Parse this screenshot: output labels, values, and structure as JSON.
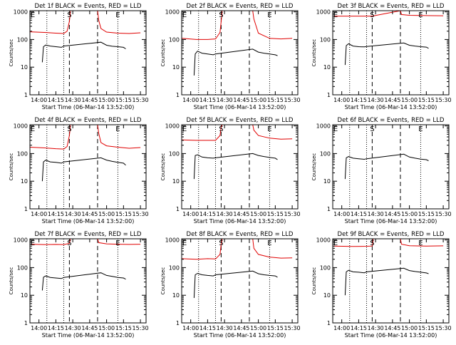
{
  "colors": {
    "events": "#000000",
    "lld": "#e00000",
    "axes": "#000000",
    "background": "#ffffff"
  },
  "common": {
    "ylabel": "Counts/sec",
    "xlabel": "Start Time (06-Mar-14 13:52:00)",
    "x_ticks": [
      "14:00",
      "14:15",
      "14:30",
      "14:45",
      "15:00",
      "15:15",
      "15:30"
    ],
    "y_ticks": [
      "1",
      "10",
      "100",
      "1000"
    ],
    "dotted_lines": [
      "14:07",
      "14:22",
      "15:10"
    ],
    "dashed_lines": [
      "14:27",
      "14:52"
    ],
    "marker_labels": [
      {
        "text": "E",
        "time": "13:52"
      },
      {
        "text": "S",
        "time": "14:27"
      },
      {
        "text": "E",
        "time": "15:10"
      }
    ]
  },
  "chart_data": [
    {
      "type": "line",
      "title": "Det 1f BLACK = Events, RED = LLD",
      "xlim": [
        "13:52",
        "15:35"
      ],
      "ylim": [
        1,
        1100
      ],
      "yscale": "log",
      "series": [
        {
          "color": "#e00000",
          "points": [
            [
              "13:52",
              190
            ],
            [
              "14:05",
              180
            ],
            [
              "14:15",
              170
            ],
            [
              "14:22",
              165
            ],
            [
              "14:25",
              200
            ],
            [
              "14:27",
              450
            ],
            [
              "14:28",
              1100
            ],
            [
              "14:52",
              1100
            ],
            [
              "14:53",
              500
            ],
            [
              "14:55",
              250
            ],
            [
              "15:00",
              185
            ],
            [
              "15:10",
              170
            ],
            [
              "15:20",
              165
            ],
            [
              "15:30",
              175
            ]
          ]
        },
        {
          "color": "#000000",
          "points": [
            [
              "14:03",
              15
            ],
            [
              "14:04",
              55
            ],
            [
              "14:06",
              63
            ],
            [
              "14:10",
              58
            ],
            [
              "14:15",
              55
            ],
            [
              "14:20",
              52
            ],
            [
              "14:22",
              58
            ],
            [
              "14:55",
              80
            ],
            [
              "15:00",
              62
            ],
            [
              "15:05",
              57
            ],
            [
              "15:10",
              55
            ],
            [
              "15:15",
              52
            ],
            [
              "15:17",
              46
            ]
          ]
        }
      ]
    },
    {
      "type": "line",
      "title": "Det 2f BLACK = Events, RED = LLD",
      "xlim": [
        "13:52",
        "15:35"
      ],
      "ylim": [
        1,
        1100
      ],
      "yscale": "log",
      "series": [
        {
          "color": "#e00000",
          "points": [
            [
              "13:52",
              110
            ],
            [
              "14:05",
              100
            ],
            [
              "14:15",
              100
            ],
            [
              "14:22",
              105
            ],
            [
              "14:26",
              180
            ],
            [
              "14:27",
              450
            ],
            [
              "14:28",
              1100
            ],
            [
              "14:55",
              1100
            ],
            [
              "14:56",
              550
            ],
            [
              "15:00",
              170
            ],
            [
              "15:10",
              110
            ],
            [
              "15:20",
              105
            ],
            [
              "15:30",
              110
            ]
          ]
        },
        {
          "color": "#000000",
          "points": [
            [
              "14:03",
              5
            ],
            [
              "14:04",
              30
            ],
            [
              "14:06",
              38
            ],
            [
              "14:10",
              32
            ],
            [
              "14:15",
              30
            ],
            [
              "14:20",
              28
            ],
            [
              "14:22",
              30
            ],
            [
              "14:55",
              45
            ],
            [
              "15:00",
              35
            ],
            [
              "15:05",
              32
            ],
            [
              "15:10",
              30
            ],
            [
              "15:15",
              28
            ],
            [
              "15:17",
              26
            ]
          ]
        }
      ]
    },
    {
      "type": "line",
      "title": "Det 3f BLACK = Events, RED = LLD",
      "xlim": [
        "13:52",
        "15:35"
      ],
      "ylim": [
        1,
        1100
      ],
      "yscale": "log",
      "series": [
        {
          "color": "#e00000",
          "points": [
            [
              "13:52",
              700
            ],
            [
              "14:10",
              700
            ],
            [
              "14:22",
              700
            ],
            [
              "14:27",
              700
            ],
            [
              "14:52",
              1100
            ],
            [
              "14:53",
              800
            ],
            [
              "15:00",
              750
            ],
            [
              "15:15",
              730
            ],
            [
              "15:30",
              720
            ]
          ]
        },
        {
          "color": "#000000",
          "points": [
            [
              "14:03",
              12
            ],
            [
              "14:04",
              60
            ],
            [
              "14:06",
              70
            ],
            [
              "14:10",
              58
            ],
            [
              "14:15",
              55
            ],
            [
              "14:20",
              54
            ],
            [
              "14:22",
              56
            ],
            [
              "14:55",
              75
            ],
            [
              "15:00",
              62
            ],
            [
              "15:05",
              58
            ],
            [
              "15:10",
              55
            ],
            [
              "15:15",
              53
            ],
            [
              "15:17",
              48
            ]
          ]
        }
      ]
    },
    {
      "type": "line",
      "title": "Det 4f BLACK = Events, RED = LLD",
      "xlim": [
        "13:52",
        "15:35"
      ],
      "ylim": [
        1,
        1100
      ],
      "yscale": "log",
      "series": [
        {
          "color": "#e00000",
          "points": [
            [
              "13:52",
              170
            ],
            [
              "14:05",
              160
            ],
            [
              "14:15",
              150
            ],
            [
              "14:22",
              145
            ],
            [
              "14:25",
              180
            ],
            [
              "14:27",
              450
            ],
            [
              "14:28",
              1100
            ],
            [
              "14:52",
              1100
            ],
            [
              "14:53",
              550
            ],
            [
              "14:55",
              250
            ],
            [
              "15:00",
              190
            ],
            [
              "15:10",
              170
            ],
            [
              "15:20",
              155
            ],
            [
              "15:30",
              165
            ]
          ]
        },
        {
          "color": "#000000",
          "points": [
            [
              "14:03",
              10
            ],
            [
              "14:04",
              50
            ],
            [
              "14:06",
              58
            ],
            [
              "14:10",
              50
            ],
            [
              "14:15",
              48
            ],
            [
              "14:20",
              45
            ],
            [
              "14:22",
              50
            ],
            [
              "14:55",
              70
            ],
            [
              "15:00",
              58
            ],
            [
              "15:05",
              52
            ],
            [
              "15:10",
              48
            ],
            [
              "15:15",
              45
            ],
            [
              "15:17",
              38
            ]
          ]
        }
      ]
    },
    {
      "type": "line",
      "title": "Det 5f BLACK = Events, RED = LLD",
      "xlim": [
        "13:52",
        "15:35"
      ],
      "ylim": [
        1,
        1100
      ],
      "yscale": "log",
      "series": [
        {
          "color": "#e00000",
          "points": [
            [
              "13:52",
              310
            ],
            [
              "14:05",
              300
            ],
            [
              "14:15",
              300
            ],
            [
              "14:22",
              300
            ],
            [
              "14:26",
              450
            ],
            [
              "14:27",
              900
            ],
            [
              "14:28",
              1100
            ],
            [
              "14:55",
              1100
            ],
            [
              "14:56",
              700
            ],
            [
              "15:00",
              450
            ],
            [
              "15:10",
              360
            ],
            [
              "15:20",
              330
            ],
            [
              "15:30",
              340
            ]
          ]
        },
        {
          "color": "#000000",
          "points": [
            [
              "14:03",
              12
            ],
            [
              "14:04",
              85
            ],
            [
              "14:06",
              90
            ],
            [
              "14:10",
              75
            ],
            [
              "14:15",
              70
            ],
            [
              "14:20",
              68
            ],
            [
              "14:22",
              70
            ],
            [
              "14:55",
              100
            ],
            [
              "15:00",
              85
            ],
            [
              "15:05",
              78
            ],
            [
              "15:10",
              72
            ],
            [
              "15:15",
              68
            ],
            [
              "15:17",
              60
            ]
          ]
        }
      ]
    },
    {
      "type": "line",
      "title": "Det 6f BLACK = Events, RED = LLD",
      "xlim": [
        "13:52",
        "15:35"
      ],
      "ylim": [
        1,
        1100
      ],
      "yscale": "log",
      "series": [
        {
          "color": "#e00000",
          "points": [
            [
              "13:52",
              1100
            ],
            [
              "14:27",
              1100
            ],
            [
              "14:52",
              1100
            ],
            [
              "15:30",
              1100
            ]
          ]
        },
        {
          "color": "#000000",
          "points": [
            [
              "14:03",
              12
            ],
            [
              "14:04",
              70
            ],
            [
              "14:06",
              78
            ],
            [
              "14:10",
              68
            ],
            [
              "14:15",
              65
            ],
            [
              "14:20",
              62
            ],
            [
              "14:22",
              65
            ],
            [
              "14:55",
              95
            ],
            [
              "15:00",
              75
            ],
            [
              "15:05",
              68
            ],
            [
              "15:10",
              63
            ],
            [
              "15:15",
              60
            ],
            [
              "15:17",
              55
            ]
          ]
        }
      ]
    },
    {
      "type": "line",
      "title": "Det 7f BLACK = Events, RED = LLD",
      "xlim": [
        "13:52",
        "15:35"
      ],
      "ylim": [
        1,
        1100
      ],
      "yscale": "log",
      "series": [
        {
          "color": "#e00000",
          "points": [
            [
              "13:52",
              700
            ],
            [
              "14:05",
              680
            ],
            [
              "14:15",
              690
            ],
            [
              "14:22",
              680
            ],
            [
              "14:27",
              750
            ],
            [
              "14:28",
              1100
            ],
            [
              "14:52",
              1100
            ],
            [
              "14:53",
              800
            ],
            [
              "15:00",
              720
            ],
            [
              "15:10",
              700
            ],
            [
              "15:20",
              690
            ],
            [
              "15:30",
              700
            ]
          ]
        },
        {
          "color": "#000000",
          "points": [
            [
              "14:03",
              15
            ],
            [
              "14:04",
              45
            ],
            [
              "14:06",
              50
            ],
            [
              "14:10",
              44
            ],
            [
              "14:15",
              42
            ],
            [
              "14:20",
              40
            ],
            [
              "14:22",
              44
            ],
            [
              "14:55",
              65
            ],
            [
              "15:00",
              52
            ],
            [
              "15:05",
              48
            ],
            [
              "15:10",
              44
            ],
            [
              "15:15",
              42
            ],
            [
              "15:17",
              38
            ]
          ]
        }
      ]
    },
    {
      "type": "line",
      "title": "Det 8f BLACK = Events, RED = LLD",
      "xlim": [
        "13:52",
        "15:35"
      ],
      "ylim": [
        1,
        1100
      ],
      "yscale": "log",
      "series": [
        {
          "color": "#e00000",
          "points": [
            [
              "13:52",
              210
            ],
            [
              "14:05",
              200
            ],
            [
              "14:15",
              210
            ],
            [
              "14:22",
              205
            ],
            [
              "14:26",
              300
            ],
            [
              "14:27",
              700
            ],
            [
              "14:28",
              1100
            ],
            [
              "14:55",
              1100
            ],
            [
              "14:56",
              500
            ],
            [
              "15:00",
              300
            ],
            [
              "15:10",
              240
            ],
            [
              "15:20",
              220
            ],
            [
              "15:30",
              225
            ]
          ]
        },
        {
          "color": "#000000",
          "points": [
            [
              "14:03",
              8
            ],
            [
              "14:04",
              55
            ],
            [
              "14:06",
              62
            ],
            [
              "14:10",
              55
            ],
            [
              "14:15",
              52
            ],
            [
              "14:20",
              50
            ],
            [
              "14:22",
              55
            ],
            [
              "14:55",
              75
            ],
            [
              "15:00",
              60
            ],
            [
              "15:05",
              55
            ],
            [
              "15:10",
              52
            ],
            [
              "15:15",
              50
            ],
            [
              "15:17",
              45
            ]
          ]
        }
      ]
    },
    {
      "type": "line",
      "title": "Det 9f BLACK = Events, RED = LLD",
      "xlim": [
        "13:52",
        "15:35"
      ],
      "ylim": [
        1,
        1100
      ],
      "yscale": "log",
      "series": [
        {
          "color": "#e00000",
          "points": [
            [
              "13:52",
              600
            ],
            [
              "14:10",
              580
            ],
            [
              "14:22",
              590
            ],
            [
              "14:27",
              600
            ],
            [
              "14:28",
              1100
            ],
            [
              "14:52",
              1100
            ],
            [
              "14:53",
              700
            ],
            [
              "15:00",
              620
            ],
            [
              "15:15",
              600
            ],
            [
              "15:30",
              610
            ]
          ]
        },
        {
          "color": "#000000",
          "points": [
            [
              "14:03",
              10
            ],
            [
              "14:04",
              70
            ],
            [
              "14:06",
              80
            ],
            [
              "14:10",
              70
            ],
            [
              "14:15",
              68
            ],
            [
              "14:20",
              65
            ],
            [
              "14:22",
              70
            ],
            [
              "14:55",
              95
            ],
            [
              "15:00",
              78
            ],
            [
              "15:05",
              72
            ],
            [
              "15:10",
              68
            ],
            [
              "15:15",
              64
            ],
            [
              "15:17",
              60
            ]
          ]
        }
      ]
    }
  ]
}
